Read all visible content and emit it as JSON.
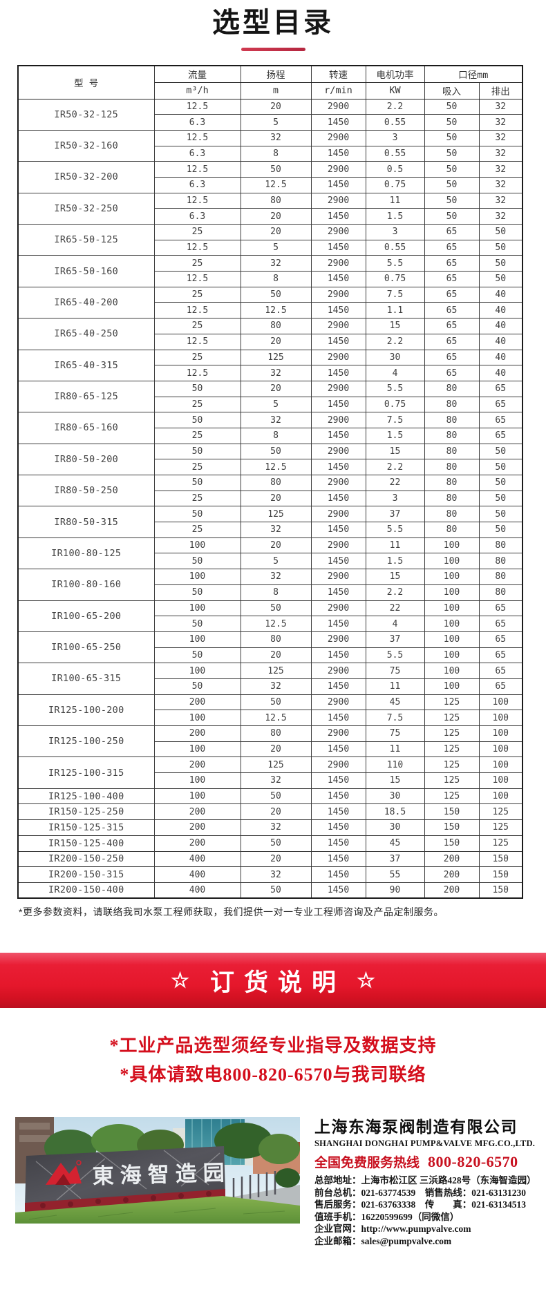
{
  "title": "选型目录",
  "table": {
    "header": {
      "model": "型  号",
      "flow": "流量",
      "flow_unit": "m³/h",
      "head": "扬程",
      "head_unit": "m",
      "speed": "转速",
      "speed_unit": "r/min",
      "power": "电机功率",
      "power_unit": "KW",
      "diameter": "口径mm",
      "suction": "吸入",
      "discharge": "排出"
    },
    "models": [
      {
        "model": "IR50-32-125",
        "rows": [
          [
            "12.5",
            "20",
            "2900",
            "2.2",
            "50",
            "32"
          ],
          [
            "6.3",
            "5",
            "1450",
            "0.55",
            "50",
            "32"
          ]
        ]
      },
      {
        "model": "IR50-32-160",
        "rows": [
          [
            "12.5",
            "32",
            "2900",
            "3",
            "50",
            "32"
          ],
          [
            "6.3",
            "8",
            "1450",
            "0.55",
            "50",
            "32"
          ]
        ]
      },
      {
        "model": "IR50-32-200",
        "rows": [
          [
            "12.5",
            "50",
            "2900",
            "0.5",
            "50",
            "32"
          ],
          [
            "6.3",
            "12.5",
            "1450",
            "0.75",
            "50",
            "32"
          ]
        ]
      },
      {
        "model": "IR50-32-250",
        "rows": [
          [
            "12.5",
            "80",
            "2900",
            "11",
            "50",
            "32"
          ],
          [
            "6.3",
            "20",
            "1450",
            "1.5",
            "50",
            "32"
          ]
        ]
      },
      {
        "model": "IR65-50-125",
        "rows": [
          [
            "25",
            "20",
            "2900",
            "3",
            "65",
            "50"
          ],
          [
            "12.5",
            "5",
            "1450",
            "0.55",
            "65",
            "50"
          ]
        ]
      },
      {
        "model": "IR65-50-160",
        "rows": [
          [
            "25",
            "32",
            "2900",
            "5.5",
            "65",
            "50"
          ],
          [
            "12.5",
            "8",
            "1450",
            "0.75",
            "65",
            "50"
          ]
        ]
      },
      {
        "model": "IR65-40-200",
        "rows": [
          [
            "25",
            "50",
            "2900",
            "7.5",
            "65",
            "40"
          ],
          [
            "12.5",
            "12.5",
            "1450",
            "1.1",
            "65",
            "40"
          ]
        ]
      },
      {
        "model": "IR65-40-250",
        "rows": [
          [
            "25",
            "80",
            "2900",
            "15",
            "65",
            "40"
          ],
          [
            "12.5",
            "20",
            "1450",
            "2.2",
            "65",
            "40"
          ]
        ]
      },
      {
        "model": "IR65-40-315",
        "rows": [
          [
            "25",
            "125",
            "2900",
            "30",
            "65",
            "40"
          ],
          [
            "12.5",
            "32",
            "1450",
            "4",
            "65",
            "40"
          ]
        ]
      },
      {
        "model": "IR80-65-125",
        "rows": [
          [
            "50",
            "20",
            "2900",
            "5.5",
            "80",
            "65"
          ],
          [
            "25",
            "5",
            "1450",
            "0.75",
            "80",
            "65"
          ]
        ]
      },
      {
        "model": "IR80-65-160",
        "rows": [
          [
            "50",
            "32",
            "2900",
            "7.5",
            "80",
            "65"
          ],
          [
            "25",
            "8",
            "1450",
            "1.5",
            "80",
            "65"
          ]
        ]
      },
      {
        "model": "IR80-50-200",
        "rows": [
          [
            "50",
            "50",
            "2900",
            "15",
            "80",
            "50"
          ],
          [
            "25",
            "12.5",
            "1450",
            "2.2",
            "80",
            "50"
          ]
        ]
      },
      {
        "model": "IR80-50-250",
        "rows": [
          [
            "50",
            "80",
            "2900",
            "22",
            "80",
            "50"
          ],
          [
            "25",
            "20",
            "1450",
            "3",
            "80",
            "50"
          ]
        ]
      },
      {
        "model": "IR80-50-315",
        "rows": [
          [
            "50",
            "125",
            "2900",
            "37",
            "80",
            "50"
          ],
          [
            "25",
            "32",
            "1450",
            "5.5",
            "80",
            "50"
          ]
        ]
      },
      {
        "model": "IR100-80-125",
        "rows": [
          [
            "100",
            "20",
            "2900",
            "11",
            "100",
            "80"
          ],
          [
            "50",
            "5",
            "1450",
            "1.5",
            "100",
            "80"
          ]
        ]
      },
      {
        "model": "IR100-80-160",
        "rows": [
          [
            "100",
            "32",
            "2900",
            "15",
            "100",
            "80"
          ],
          [
            "50",
            "8",
            "1450",
            "2.2",
            "100",
            "80"
          ]
        ]
      },
      {
        "model": "IR100-65-200",
        "rows": [
          [
            "100",
            "50",
            "2900",
            "22",
            "100",
            "65"
          ],
          [
            "50",
            "12.5",
            "1450",
            "4",
            "100",
            "65"
          ]
        ]
      },
      {
        "model": "IR100-65-250",
        "rows": [
          [
            "100",
            "80",
            "2900",
            "37",
            "100",
            "65"
          ],
          [
            "50",
            "20",
            "1450",
            "5.5",
            "100",
            "65"
          ]
        ]
      },
      {
        "model": "IR100-65-315",
        "rows": [
          [
            "100",
            "125",
            "2900",
            "75",
            "100",
            "65"
          ],
          [
            "50",
            "32",
            "1450",
            "11",
            "100",
            "65"
          ]
        ]
      },
      {
        "model": "IR125-100-200",
        "rows": [
          [
            "200",
            "50",
            "2900",
            "45",
            "125",
            "100"
          ],
          [
            "100",
            "12.5",
            "1450",
            "7.5",
            "125",
            "100"
          ]
        ]
      },
      {
        "model": "IR125-100-250",
        "rows": [
          [
            "200",
            "80",
            "2900",
            "75",
            "125",
            "100"
          ],
          [
            "100",
            "20",
            "1450",
            "11",
            "125",
            "100"
          ]
        ]
      },
      {
        "model": "IR125-100-315",
        "rows": [
          [
            "200",
            "125",
            "2900",
            "110",
            "125",
            "100"
          ],
          [
            "100",
            "32",
            "1450",
            "15",
            "125",
            "100"
          ]
        ]
      },
      {
        "model": "IR125-100-400",
        "rows": [
          [
            "100",
            "50",
            "1450",
            "30",
            "125",
            "100"
          ]
        ]
      },
      {
        "model": "IR150-125-250",
        "rows": [
          [
            "200",
            "20",
            "1450",
            "18.5",
            "150",
            "125"
          ]
        ]
      },
      {
        "model": "IR150-125-315",
        "rows": [
          [
            "200",
            "32",
            "1450",
            "30",
            "150",
            "125"
          ]
        ]
      },
      {
        "model": "IR150-125-400",
        "rows": [
          [
            "200",
            "50",
            "1450",
            "45",
            "150",
            "125"
          ]
        ]
      },
      {
        "model": "IR200-150-250",
        "rows": [
          [
            "400",
            "20",
            "1450",
            "37",
            "200",
            "150"
          ]
        ]
      },
      {
        "model": "IR200-150-315",
        "rows": [
          [
            "400",
            "32",
            "1450",
            "55",
            "200",
            "150"
          ]
        ]
      },
      {
        "model": "IR200-150-400",
        "rows": [
          [
            "400",
            "50",
            "1450",
            "90",
            "200",
            "150"
          ]
        ]
      }
    ]
  },
  "footnote": "*更多参数资料，请联络我司水泵工程师获取，我们提供一对一专业工程师咨询及产品定制服务。",
  "banner": {
    "star_left": "☆",
    "label": "订货说明",
    "star_right": "☆"
  },
  "notices": [
    "*工业产品选型须经专业指导及数据支持",
    "*具体请致电800-820-6570与我司联络"
  ],
  "company": {
    "name_cn": "上海东海泵阀制造有限公司",
    "name_en": "SHANGHAI DONGHAI PUMP&VALVE MFG.CO.,LTD.",
    "hotline_label": "全国免费服务热线",
    "hotline_number": "800-820-6570",
    "details": [
      "总部地址：上海市松江区 三浜路428号（东海智造园）",
      "前台总机：021-63774539　销售热线：021-63131230",
      "售后服务：021-63763338　传　　真：021-63134513",
      "值班手机：16220599699（同微信）",
      "企业官网：http://www.pumpvalve.com",
      "企业邮箱：sales@pumpvalve.com"
    ]
  },
  "photo": {
    "sign_text": "東海智造园"
  },
  "colors": {
    "accent_red": "#e5172b",
    "text_red": "#d40e1c",
    "underline_red": "#c32b44",
    "table_border": "#1a1a1a"
  }
}
